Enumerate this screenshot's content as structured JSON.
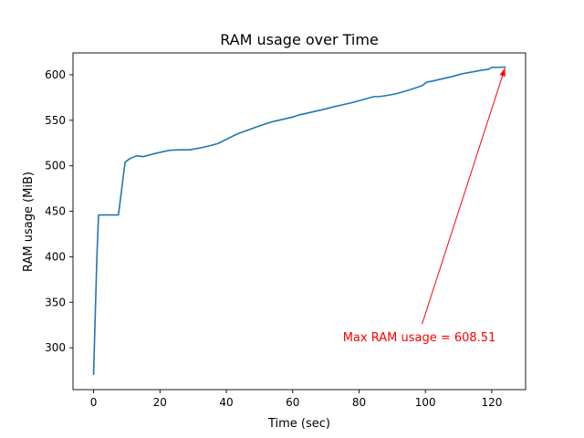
{
  "chart_data": {
    "type": "line",
    "title": "RAM usage over Time",
    "xlabel": "Time (sec)",
    "ylabel": "RAM usage (MiB)",
    "xlim": [
      -6.2,
      130.2
    ],
    "ylim": [
      254,
      624
    ],
    "xticks": [
      0,
      20,
      40,
      60,
      80,
      100,
      120
    ],
    "yticks": [
      300,
      350,
      400,
      450,
      500,
      550,
      600
    ],
    "grid": false,
    "series": [
      {
        "color": "#1f77b4",
        "x": [
          0,
          1,
          1.5,
          7.5,
          9.5,
          11,
          13,
          15,
          18,
          21,
          23,
          26,
          29,
          32,
          35,
          37.5,
          40,
          43,
          46,
          49,
          51,
          54,
          57,
          60,
          62,
          64,
          67,
          70,
          72,
          75,
          78,
          81,
          83,
          84.5,
          86,
          88,
          91,
          94,
          97,
          99,
          100.5,
          102,
          105,
          108,
          111,
          114,
          117,
          119,
          120,
          122,
          124
        ],
        "y": [
          271,
          400,
          446,
          446,
          504,
          508,
          511,
          510,
          513,
          515.5,
          517,
          517.5,
          517.5,
          519.5,
          522,
          524.5,
          529,
          534.5,
          538.5,
          542.5,
          545,
          548.5,
          551,
          553.5,
          556,
          557.5,
          560,
          562.5,
          564.5,
          567,
          569.5,
          572.5,
          574.5,
          576,
          576,
          577,
          579,
          582,
          585.5,
          588,
          592,
          593,
          595.5,
          598,
          601,
          603,
          605,
          606,
          608,
          608.2,
          608.51
        ]
      }
    ],
    "annotation": {
      "text": "Max RAM usage = 608.51",
      "color": "#ff0000",
      "xy": [
        124,
        608.51
      ],
      "xytext": [
        99,
        312
      ]
    }
  }
}
